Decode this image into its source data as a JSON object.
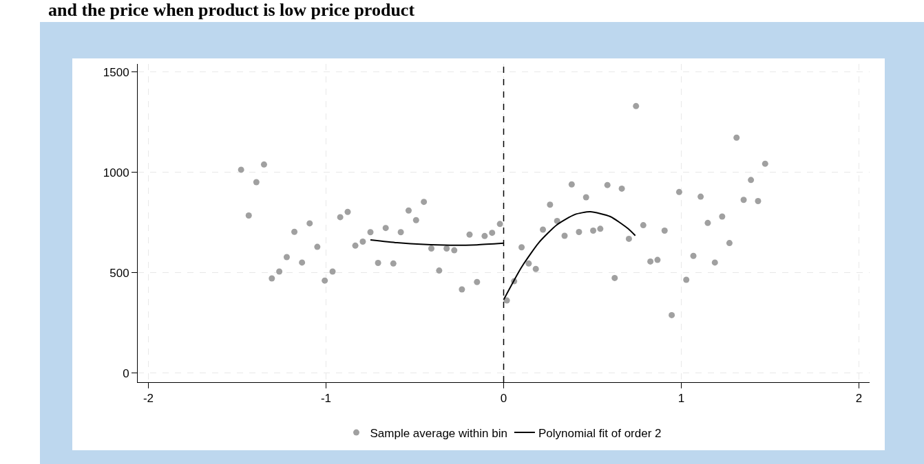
{
  "chart_data": {
    "type": "scatter",
    "title": "and the price when product is low price product",
    "series": [
      {
        "name": "Sample average within bin",
        "color": "#a0a0a0",
        "marker": "circle",
        "x": [
          -1.478,
          -1.435,
          -1.392,
          -1.349,
          -1.305,
          -1.263,
          -1.221,
          -1.178,
          -1.135,
          -1.092,
          -1.049,
          -1.007,
          -0.963,
          -0.92,
          -0.878,
          -0.835,
          -0.793,
          -0.75,
          -0.707,
          -0.664,
          -0.621,
          -0.579,
          -0.535,
          -0.493,
          -0.449,
          -0.407,
          -0.363,
          -0.321,
          -0.278,
          -0.235,
          -0.192,
          -0.15,
          -0.107,
          -0.065,
          -0.021,
          0.018,
          0.059,
          0.101,
          0.141,
          0.181,
          0.221,
          0.261,
          0.301,
          0.343,
          0.383,
          0.424,
          0.464,
          0.504,
          0.544,
          0.584,
          0.625,
          0.665,
          0.705,
          0.745,
          0.786,
          0.826,
          0.866,
          0.906,
          0.946,
          0.988,
          1.028,
          1.068,
          1.109,
          1.149,
          1.189,
          1.23,
          1.271,
          1.311,
          1.351,
          1.392,
          1.432,
          1.472
        ],
        "values": [
          1013,
          785,
          951,
          1039,
          472,
          506,
          578,
          704,
          551,
          746,
          629,
          461,
          506,
          777,
          803,
          635,
          655,
          702,
          549,
          723,
          546,
          702,
          810,
          762,
          853,
          621,
          511,
          621,
          612,
          417,
          690,
          454,
          683,
          699,
          743,
          362,
          458,
          627,
          546,
          519,
          715,
          839,
          758,
          684,
          940,
          703,
          876,
          710,
          719,
          937,
          474,
          919,
          669,
          1330,
          737,
          556,
          564,
          710,
          289,
          902,
          465,
          584,
          879,
          748,
          551,
          780,
          648,
          1173,
          863,
          962,
          857,
          1043
        ]
      },
      {
        "type": "line",
        "name": "Polynomial fit of order 2",
        "color": "#000000",
        "marker": "none",
        "line_style": "solid",
        "x": [
          -0.75,
          -0.6,
          -0.45,
          -0.3,
          -0.15,
          0
        ],
        "values": [
          664,
          650,
          641,
          637,
          639,
          647
        ]
      },
      {
        "type": "line",
        "color": "#000000",
        "marker": "none",
        "line_style": "solid",
        "x": [
          0,
          0.1,
          0.2,
          0.3,
          0.4,
          0.487,
          0.6,
          0.7,
          0.741
        ],
        "values": [
          366,
          527,
          652,
          739,
          790,
          804,
          780,
          720,
          685
        ]
      }
    ],
    "xlim": [
      -2.06,
      2.06
    ],
    "xticks": [
      -2,
      -1,
      0,
      1,
      2
    ],
    "ylim": [
      -45,
      1540
    ],
    "yticks": [
      0,
      500,
      1000,
      1500
    ],
    "grid": true,
    "legend": "bottom",
    "ref_lines": [
      {
        "axis": "x",
        "value": 0,
        "color": "#000000",
        "line_style": "dashed"
      }
    ]
  }
}
